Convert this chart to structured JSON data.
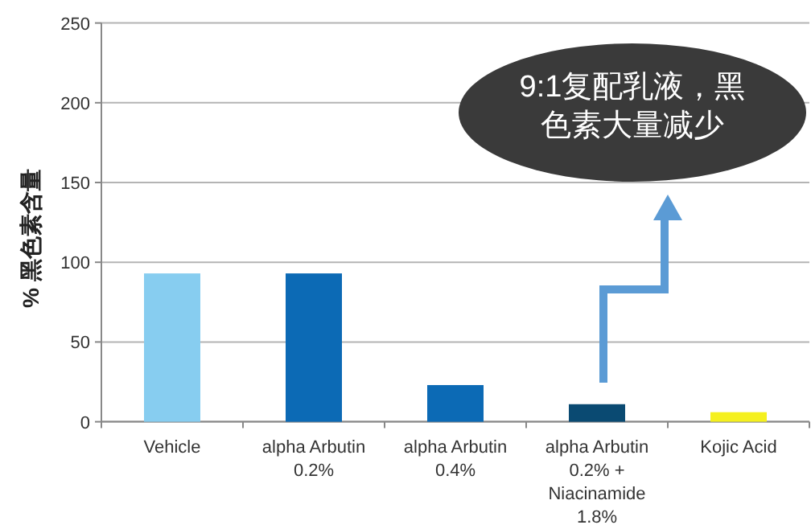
{
  "chart_data": {
    "type": "bar",
    "ylabel": "% 黑色素含量",
    "categories": [
      "Vehicle",
      "alpha Arbutin\n0.2%",
      "alpha Arbutin\n0.4%",
      "alpha Arbutin\n0.2% +\nNiacinamide\n1.8%",
      "Kojic Acid"
    ],
    "values": [
      93,
      93,
      23,
      11,
      6
    ],
    "colors": [
      "#87cdf0",
      "#0c6ab5",
      "#0c6ab5",
      "#0a4a72",
      "#f5f01e"
    ],
    "ylim": [
      0,
      250
    ],
    "yticks": [
      0,
      50,
      100,
      150,
      200,
      250
    ],
    "grid": "y",
    "annotations": [
      "9:1复配乳液，黑色素大量减少"
    ]
  }
}
